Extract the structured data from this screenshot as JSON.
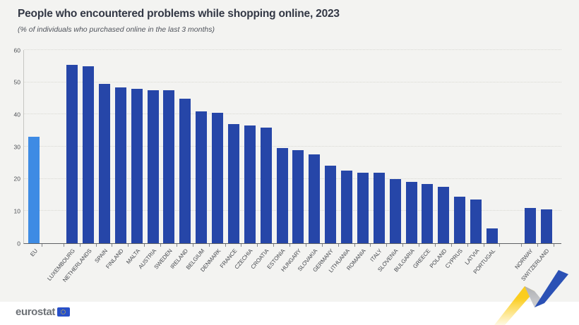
{
  "header": {
    "title": "People who encountered problems while shopping online, 2023",
    "subtitle": "(% of individuals who purchased online in the last 3 months)"
  },
  "chart_data": {
    "type": "bar",
    "title": "People who encountered problems while shopping online, 2023",
    "subtitle": "(% of individuals who purchased online in the last 3 months)",
    "ylim": [
      0,
      60
    ],
    "yticks": [
      0,
      10,
      20,
      30,
      40,
      50,
      60
    ],
    "grid": "horizontal-dotted",
    "legend": "none",
    "highlight_category": "EU",
    "gap_after": [
      "EU",
      "PORTUGAL"
    ],
    "categories": [
      "EU",
      "LUXEMBOURG",
      "NETHERLANDS",
      "SPAIN",
      "FINLAND",
      "MALTA",
      "AUSTRIA",
      "SWEDEN",
      "IRELAND",
      "BELGIUM",
      "DENMARK",
      "FRANCE",
      "CZECHIA",
      "CROATIA",
      "ESTONIA",
      "HUNGARY",
      "SLOVAKIA",
      "GERMANY",
      "LITHUANIA",
      "ROMANIA",
      "ITALY",
      "SLOVENIA",
      "BULGARIA",
      "GREECE",
      "POLAND",
      "CYPRUS",
      "LATVIA",
      "PORTUGAL",
      "NORWAY",
      "SWITZERLAND"
    ],
    "values": [
      33,
      55.5,
      55,
      49.5,
      48.5,
      48,
      47.5,
      47.5,
      45,
      41,
      40.5,
      37,
      36.5,
      36,
      29.5,
      29,
      27.5,
      24,
      22.5,
      22,
      22,
      20,
      19,
      18.5,
      17.5,
      14.5,
      13.5,
      4.5,
      11,
      10.5
    ]
  },
  "colors": {
    "eu_bar": "#3e8be4",
    "member_bar": "#2646a8",
    "background": "#f3f3f1",
    "footer_background": "#ffffff",
    "ribbon_yellow": "#fbcd1e",
    "ribbon_gray": "#b9babd",
    "ribbon_blue": "#2b51b5"
  },
  "footer": {
    "logo_text": "eurostat"
  }
}
